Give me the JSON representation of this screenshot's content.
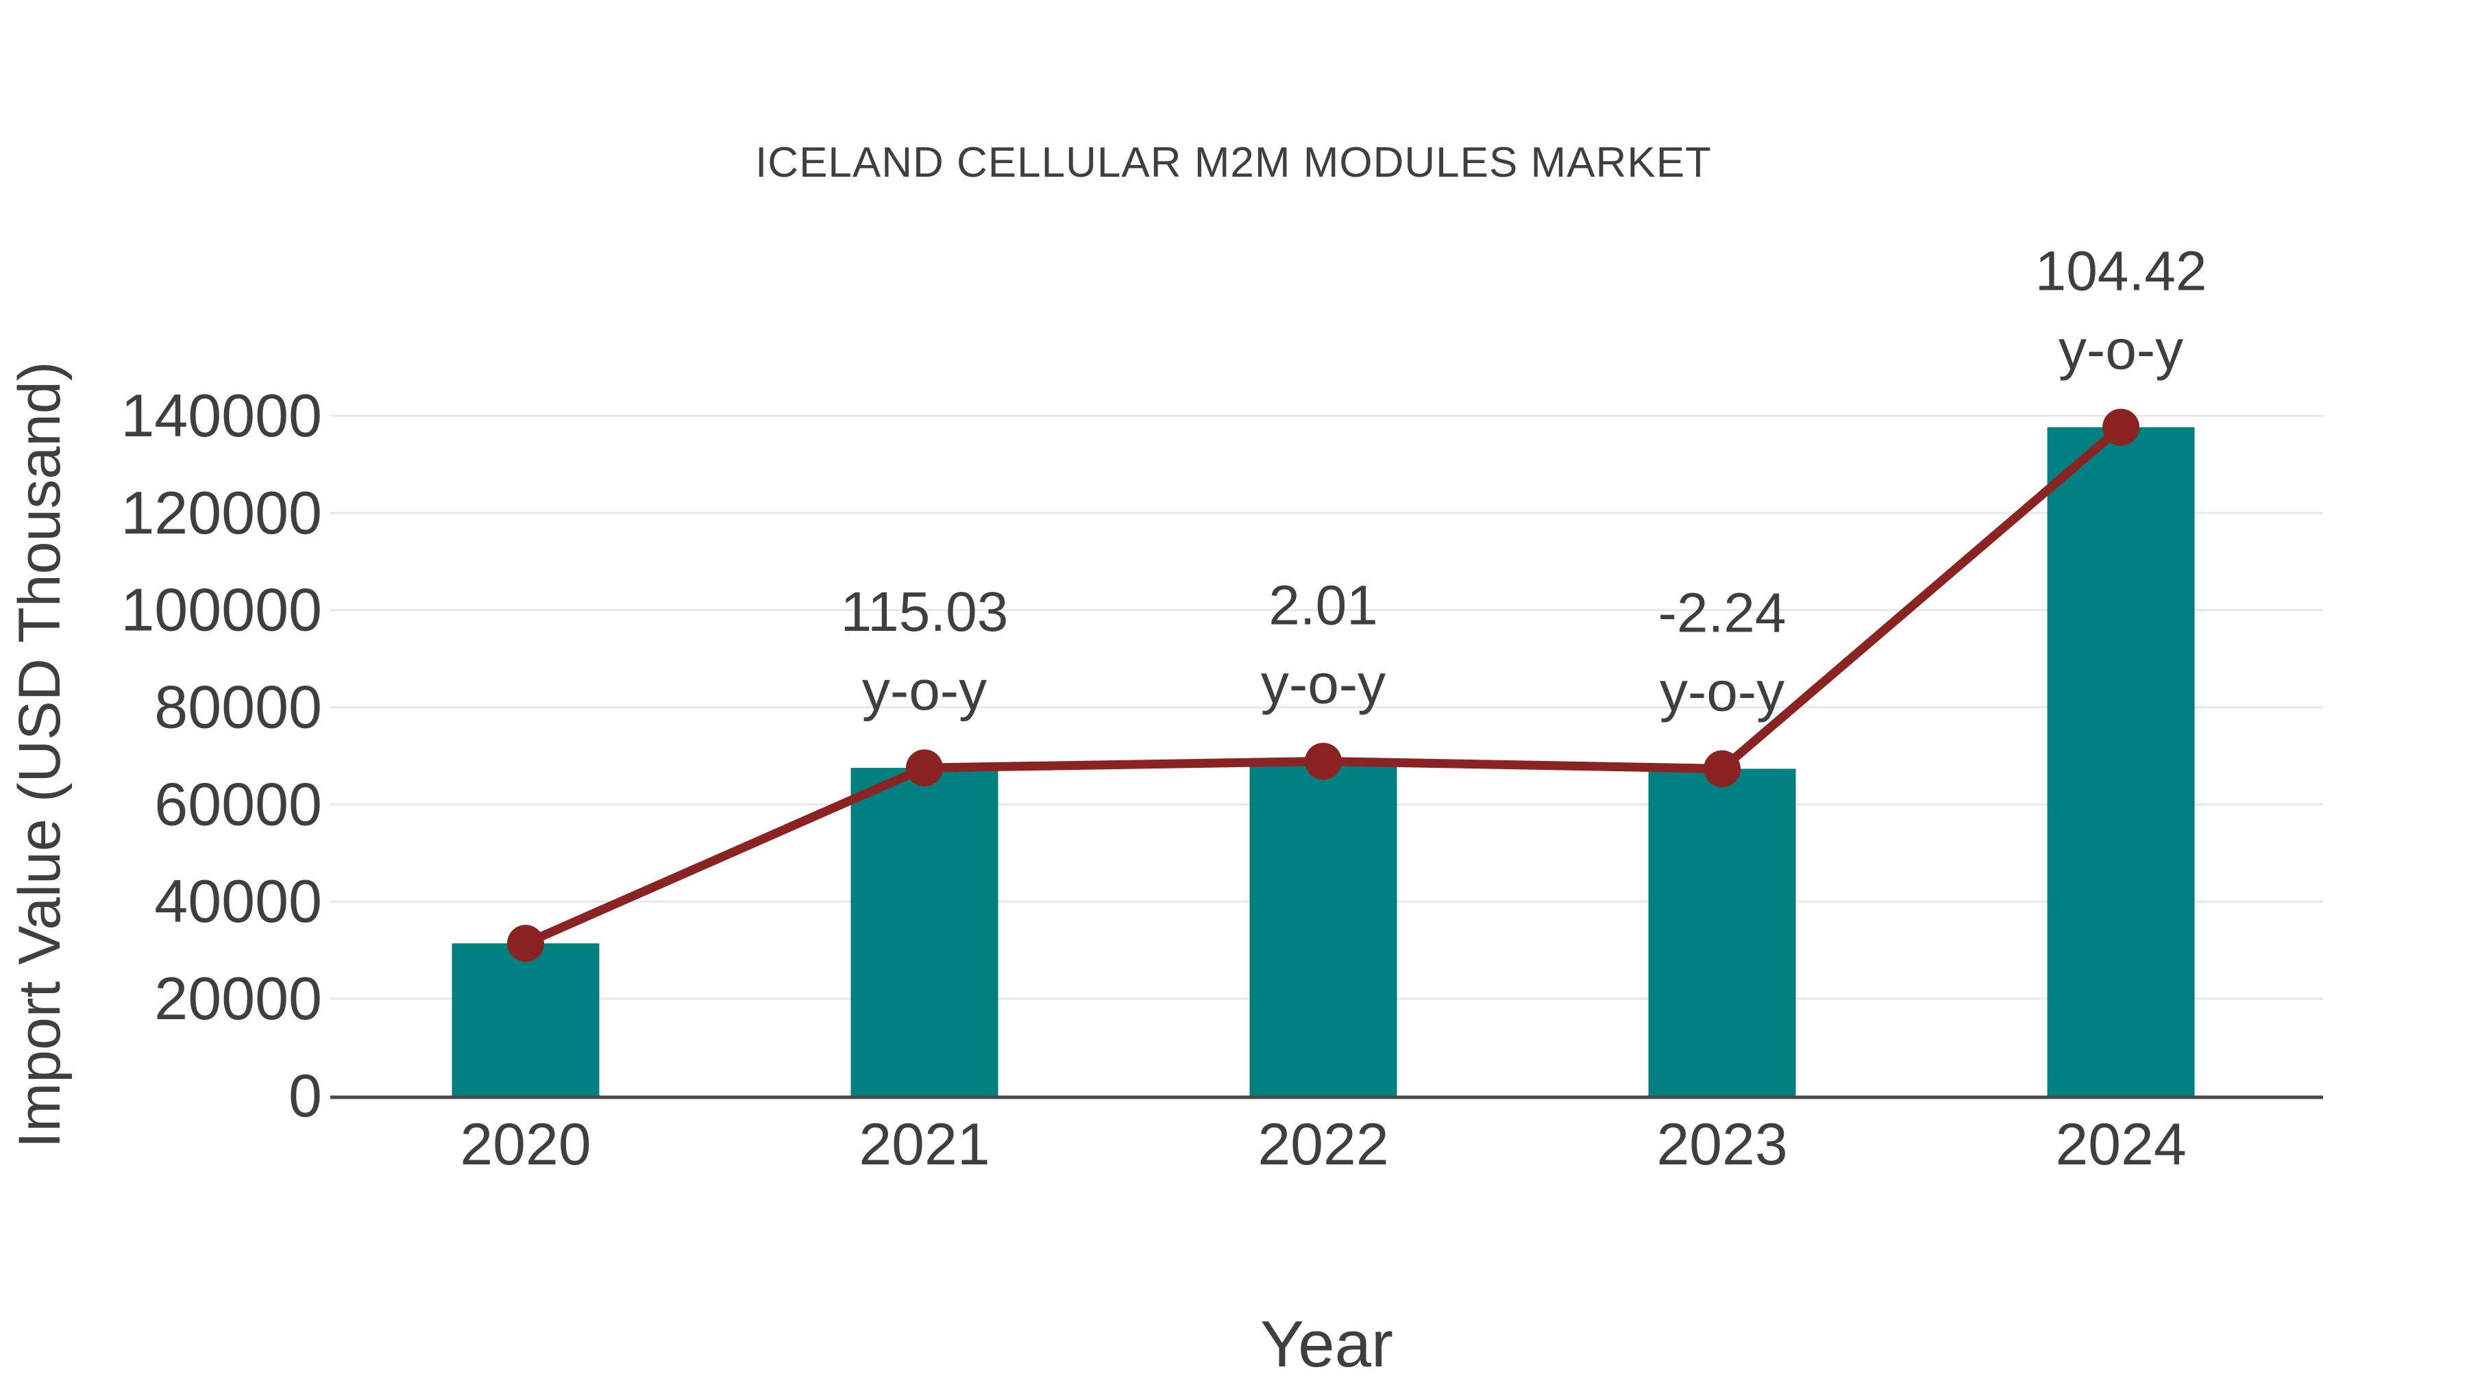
{
  "header": {
    "title": "ICELAND CELLULAR M2M MODULES MARKET"
  },
  "chart_data": {
    "type": "bar",
    "title": "ICELAND CELLULAR M2M MODULES MARKET",
    "xlabel": "Year",
    "ylabel": "Import Value (USD Thousand)",
    "categories": [
      "2020",
      "2021",
      "2022",
      "2023",
      "2024"
    ],
    "series": [
      {
        "name": "Import Value (USD Thousand)",
        "type": "bar",
        "values": [
          31400,
          67519,
          68876,
          67333,
          137642
        ],
        "color": "#008080"
      },
      {
        "name": "y-o-y trend line",
        "type": "line",
        "values": [
          31400,
          67519,
          68876,
          67333,
          137642
        ],
        "color": "#8c2323"
      }
    ],
    "yoy_percent": [
      null,
      115.03,
      2.01,
      -2.24,
      104.42
    ],
    "annotations": [
      null,
      {
        "line1": "115.03",
        "line2": "y-o-y"
      },
      {
        "line1": "2.01",
        "line2": "y-o-y"
      },
      {
        "line1": "-2.24",
        "line2": "y-o-y"
      },
      {
        "line1": "104.42",
        "line2": "y-o-y"
      }
    ],
    "ylim": [
      0,
      140000
    ],
    "yticks": [
      0,
      20000,
      40000,
      60000,
      80000,
      100000,
      120000,
      140000
    ],
    "grid": "horizontal",
    "legend": "none",
    "colors": {
      "bar": "#008080",
      "line": "#8c2323",
      "marker": "#8c2323",
      "text": "#3f3f3f",
      "gridline": "#e8e8e8",
      "axis": "#4a4a4a",
      "background": "#ffffff"
    }
  }
}
